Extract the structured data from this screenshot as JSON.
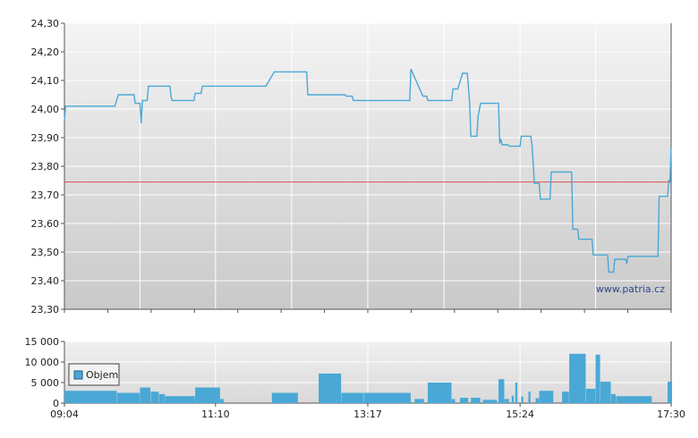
{
  "chart_data": [
    {
      "type": "line",
      "y_ticks": [
        "24,30",
        "24,20",
        "24,10",
        "24,00",
        "23,90",
        "23,80",
        "23,70",
        "23,60",
        "23,50",
        "23,40",
        "23,30"
      ],
      "y_tick_values": [
        24.3,
        24.2,
        24.1,
        24.0,
        23.9,
        23.8,
        23.7,
        23.6,
        23.5,
        23.4,
        23.3
      ],
      "ylim": [
        23.3,
        24.3
      ],
      "xlim": [
        "09:04",
        "17:30"
      ],
      "grid": true,
      "reference_line": {
        "value": 23.745,
        "color": "#e05050"
      },
      "watermark": "www.patria.cz",
      "series": [
        {
          "color": "#4aa8d6",
          "points": [
            [
              "09:04",
              23.96
            ],
            [
              "09:05",
              24.01
            ],
            [
              "09:46",
              24.01
            ],
            [
              "09:49",
              24.05
            ],
            [
              "10:02",
              24.05
            ],
            [
              "10:03",
              24.02
            ],
            [
              "10:07",
              24.02
            ],
            [
              "10:08",
              23.95
            ],
            [
              "10:09",
              24.03
            ],
            [
              "10:13",
              24.03
            ],
            [
              "10:14",
              24.08
            ],
            [
              "10:32",
              24.08
            ],
            [
              "10:33",
              24.04
            ],
            [
              "10:34",
              24.03
            ],
            [
              "10:52",
              24.03
            ],
            [
              "10:53",
              24.055
            ],
            [
              "10:58",
              24.055
            ],
            [
              "10:59",
              24.08
            ],
            [
              "11:52",
              24.08
            ],
            [
              "11:59",
              24.13
            ],
            [
              "12:26",
              24.13
            ],
            [
              "12:27",
              24.05
            ],
            [
              "12:58",
              24.05
            ],
            [
              "12:59",
              24.045
            ],
            [
              "13:04",
              24.045
            ],
            [
              "13:05",
              24.03
            ],
            [
              "13:52",
              24.03
            ],
            [
              "13:53",
              24.14
            ],
            [
              "14:03",
              24.045
            ],
            [
              "14:06",
              24.045
            ],
            [
              "14:07",
              24.03
            ],
            [
              "14:27",
              24.03
            ],
            [
              "14:28",
              24.07
            ],
            [
              "14:32",
              24.07
            ],
            [
              "14:36",
              24.125
            ],
            [
              "14:40",
              24.125
            ],
            [
              "14:42",
              24.02
            ],
            [
              "14:43",
              23.905
            ],
            [
              "14:48",
              23.905
            ],
            [
              "14:49",
              23.975
            ],
            [
              "14:51",
              24.02
            ],
            [
              "15:06",
              24.02
            ],
            [
              "15:07",
              23.88
            ],
            [
              "15:08",
              23.895
            ],
            [
              "15:09",
              23.875
            ],
            [
              "15:14",
              23.875
            ],
            [
              "15:15",
              23.87
            ],
            [
              "15:24",
              23.87
            ],
            [
              "15:25",
              23.905
            ],
            [
              "15:33",
              23.905
            ],
            [
              "15:34",
              23.87
            ],
            [
              "15:36",
              23.74
            ],
            [
              "15:40",
              23.74
            ],
            [
              "15:41",
              23.685
            ],
            [
              "15:49",
              23.685
            ],
            [
              "15:50",
              23.78
            ],
            [
              "16:07",
              23.78
            ],
            [
              "16:08",
              23.58
            ],
            [
              "16:12",
              23.58
            ],
            [
              "16:13",
              23.545
            ],
            [
              "16:24",
              23.545
            ],
            [
              "16:25",
              23.49
            ],
            [
              "16:37",
              23.49
            ],
            [
              "16:38",
              23.43
            ],
            [
              "16:42",
              23.43
            ],
            [
              "16:43",
              23.475
            ],
            [
              "16:52",
              23.475
            ],
            [
              "16:53",
              23.46
            ],
            [
              "16:54",
              23.485
            ],
            [
              "17:19",
              23.485
            ],
            [
              "17:20",
              23.695
            ],
            [
              "17:27",
              23.695
            ],
            [
              "17:28",
              23.75
            ],
            [
              "17:29",
              23.745
            ],
            [
              "17:30",
              23.87
            ]
          ]
        }
      ]
    },
    {
      "type": "bar",
      "y_ticks": [
        "15 000",
        "10 000",
        "5 000",
        "0"
      ],
      "y_tick_values": [
        15000,
        10000,
        5000,
        0
      ],
      "ylim": [
        0,
        15000
      ],
      "x_ticks": [
        "09:04",
        "11:10",
        "13:17",
        "15:24",
        "17:30"
      ],
      "xlim": [
        "09:04",
        "17:30"
      ],
      "legend": {
        "label": "Objem",
        "position": "top-left"
      },
      "series": [
        {
          "name": "Objem",
          "color": "#4aa8d6",
          "bars": [
            [
              "09:04",
              "09:47",
              3000
            ],
            [
              "09:48",
              "10:06",
              2500
            ],
            [
              "10:07",
              "10:15",
              3800
            ],
            [
              "10:16",
              "10:22",
              2800
            ],
            [
              "10:23",
              "10:27",
              2200
            ],
            [
              "10:28",
              "10:52",
              1700
            ],
            [
              "10:53",
              "11:13",
              3800
            ],
            [
              "11:14",
              "11:16",
              1000
            ],
            [
              "11:57",
              "12:18",
              2500
            ],
            [
              "12:36",
              "12:54",
              7200
            ],
            [
              "12:55",
              "13:13",
              2500
            ],
            [
              "13:14",
              "13:52",
              2500
            ],
            [
              "13:56",
              "14:03",
              1000
            ],
            [
              "14:07",
              "14:26",
              5000
            ],
            [
              "14:27",
              "14:29",
              1000
            ],
            [
              "14:34",
              "14:40",
              1300
            ],
            [
              "14:43",
              "14:50",
              1300
            ],
            [
              "14:53",
              "15:04",
              800
            ],
            [
              "15:06",
              "15:10",
              5800
            ],
            [
              "15:11",
              "15:14",
              1000
            ],
            [
              "15:17",
              "15:18",
              1800
            ],
            [
              "15:20",
              "15:21",
              5000
            ],
            [
              "15:25",
              "15:26",
              1600
            ],
            [
              "15:31",
              "15:32",
              2800
            ],
            [
              "15:37",
              "15:39",
              1200
            ],
            [
              "15:40",
              "15:51",
              3000
            ],
            [
              "15:59",
              "16:04",
              2800
            ],
            [
              "16:05",
              "16:18",
              12000
            ],
            [
              "16:19",
              "16:26",
              3500
            ],
            [
              "16:27",
              "16:30",
              11800
            ],
            [
              "16:31",
              "16:39",
              5200
            ],
            [
              "16:40",
              "16:43",
              2200
            ],
            [
              "16:44",
              "17:13",
              1700
            ],
            [
              "17:27",
              "17:30",
              5200
            ]
          ]
        }
      ]
    }
  ]
}
